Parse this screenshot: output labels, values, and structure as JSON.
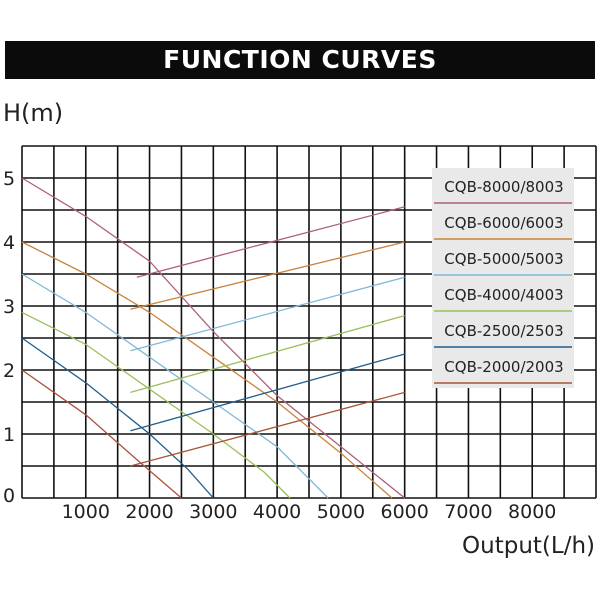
{
  "header": {
    "title": "FUNCTION CURVES"
  },
  "chart_data": {
    "type": "line",
    "title": "FUNCTION CURVES",
    "ylabel": "H(m)",
    "xlabel": "Output(L/h)",
    "xlim": [
      0,
      9000
    ],
    "ylim": [
      0,
      5.5
    ],
    "x_ticks": [
      1000,
      2000,
      3000,
      4000,
      5000,
      6000,
      7000,
      8000
    ],
    "y_ticks": [
      0,
      1,
      2,
      3,
      4,
      5
    ],
    "grid": true,
    "legend_position": "top-right",
    "series": [
      {
        "name": "CQB-8000/8003",
        "color": "#b0607a",
        "points": [
          [
            0,
            5.0
          ],
          [
            1000,
            4.4
          ],
          [
            2000,
            3.7
          ],
          [
            3000,
            2.6
          ],
          [
            4000,
            1.6
          ],
          [
            5000,
            0.8
          ],
          [
            6000,
            0.0
          ]
        ],
        "efficiency_line": [
          [
            1800,
            3.45
          ],
          [
            6000,
            4.55
          ]
        ]
      },
      {
        "name": "CQB-6000/6003",
        "color": "#c8843c",
        "points": [
          [
            0,
            4.0
          ],
          [
            1000,
            3.5
          ],
          [
            2000,
            2.9
          ],
          [
            3000,
            2.2
          ],
          [
            4000,
            1.5
          ],
          [
            5000,
            0.7
          ],
          [
            5800,
            0.0
          ]
        ],
        "efficiency_line": [
          [
            1700,
            2.95
          ],
          [
            6000,
            4.0
          ]
        ]
      },
      {
        "name": "CQB-5000/5003",
        "color": "#7fb9d6",
        "points": [
          [
            0,
            3.5
          ],
          [
            1000,
            2.9
          ],
          [
            2000,
            2.2
          ],
          [
            3000,
            1.5
          ],
          [
            4000,
            0.8
          ],
          [
            4800,
            0.0
          ]
        ],
        "efficiency_line": [
          [
            1700,
            2.3
          ],
          [
            6000,
            3.45
          ]
        ]
      },
      {
        "name": "CQB-4000/4003",
        "color": "#9ac05a",
        "points": [
          [
            0,
            2.9
          ],
          [
            1000,
            2.4
          ],
          [
            2000,
            1.7
          ],
          [
            3000,
            1.0
          ],
          [
            3800,
            0.4
          ],
          [
            4200,
            0.0
          ]
        ],
        "efficiency_line": [
          [
            1700,
            1.65
          ],
          [
            6000,
            2.85
          ]
        ]
      },
      {
        "name": "CQB-2500/2503",
        "color": "#1f5e8e",
        "points": [
          [
            0,
            2.5
          ],
          [
            1000,
            1.8
          ],
          [
            2000,
            1.0
          ],
          [
            2600,
            0.45
          ],
          [
            3000,
            0.0
          ]
        ],
        "efficiency_line": [
          [
            1700,
            1.05
          ],
          [
            6000,
            2.25
          ]
        ]
      },
      {
        "name": "CQB-2000/2003",
        "color": "#a8543a",
        "points": [
          [
            0,
            2.0
          ],
          [
            1000,
            1.3
          ],
          [
            1800,
            0.6
          ],
          [
            2500,
            0.0
          ]
        ],
        "efficiency_line": [
          [
            1700,
            0.5
          ],
          [
            6000,
            1.65
          ]
        ]
      }
    ]
  }
}
